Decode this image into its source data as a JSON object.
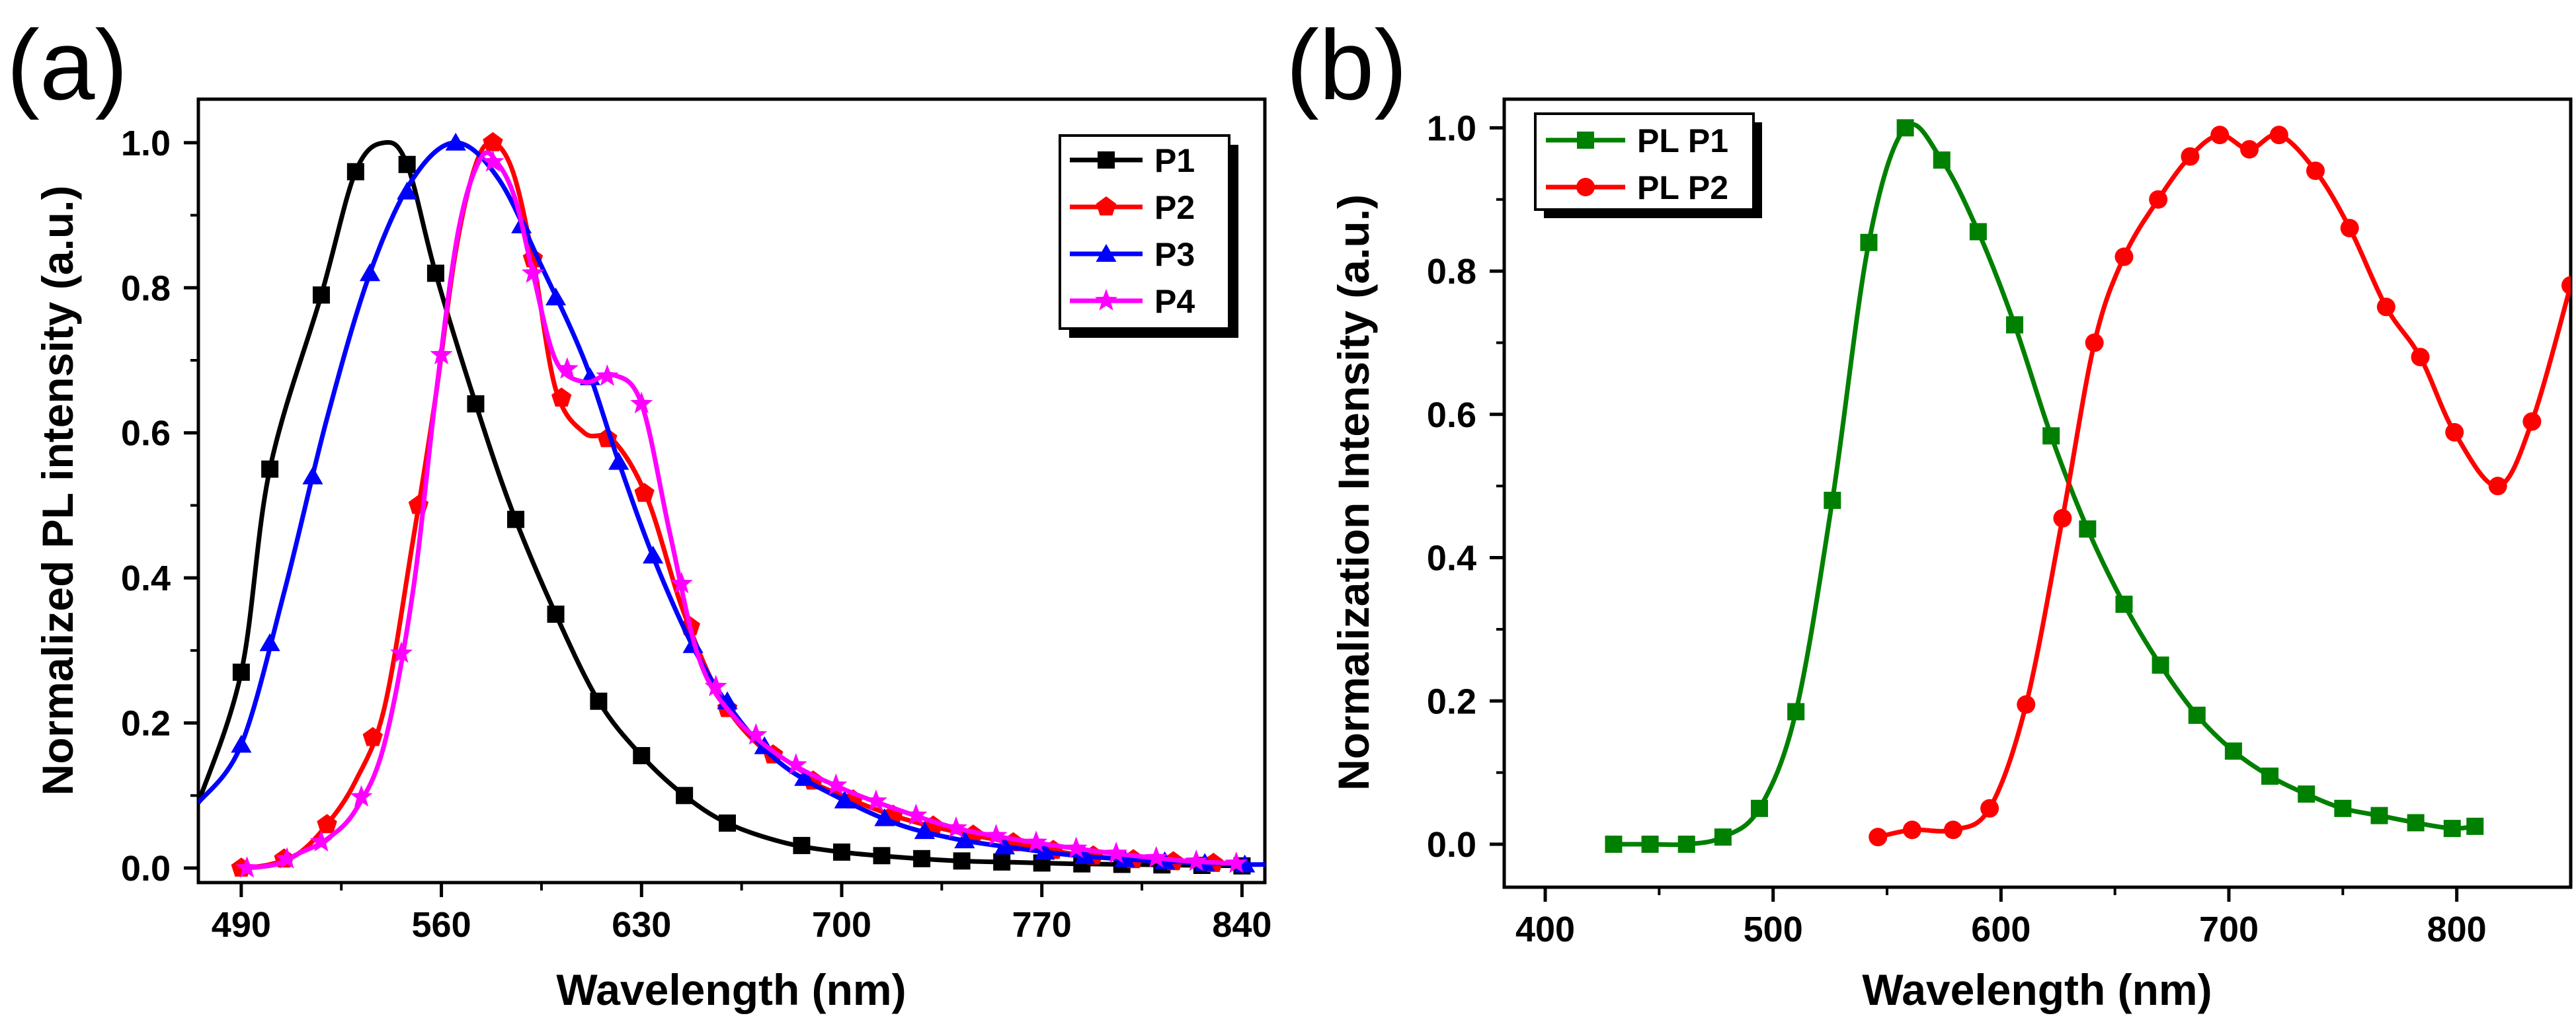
{
  "chart_data": [
    {
      "panel": "(a)",
      "type": "line",
      "xlabel": "Wavelength (nm)",
      "ylabel": "Normalized PL intensity (a.u.)",
      "xlim": [
        475,
        848
      ],
      "ylim": [
        -0.02,
        1.06
      ],
      "xticks": [
        490,
        560,
        630,
        700,
        770,
        840
      ],
      "yticks": [
        0.0,
        0.2,
        0.4,
        0.6,
        0.8,
        1.0
      ],
      "legend_position": "top-right",
      "series": [
        {
          "name": "P1",
          "color": "#000000",
          "marker": "square",
          "x": [
            475,
            490,
            500,
            518,
            530,
            540,
            548,
            558,
            572,
            585,
            600,
            615,
            630,
            645,
            660,
            680,
            700,
            720,
            740,
            760,
            780,
            800,
            820,
            840
          ],
          "y": [
            0.09,
            0.27,
            0.55,
            0.79,
            0.96,
            1.0,
            0.97,
            0.82,
            0.64,
            0.49,
            0.35,
            0.23,
            0.155,
            0.1,
            0.062,
            0.035,
            0.022,
            0.015,
            0.01,
            0.008,
            0.006,
            0.005,
            0.004,
            0.003
          ],
          "marker_x": [
            490,
            500,
            518,
            530,
            548,
            558,
            572,
            586,
            600,
            615,
            630,
            645,
            660,
            686,
            700,
            714,
            728,
            742,
            756,
            770,
            784,
            798,
            812,
            826,
            840
          ]
        },
        {
          "name": "P2",
          "color": "#ff0000",
          "marker": "pentagon",
          "x": [
            490,
            500,
            510,
            520,
            530,
            540,
            550,
            558,
            565,
            572,
            578,
            585,
            592,
            600,
            610,
            620,
            632,
            645,
            660,
            680,
            700,
            720,
            740,
            760,
            780,
            800,
            820,
            840
          ],
          "y": [
            0.0,
            0.005,
            0.02,
            0.06,
            0.12,
            0.22,
            0.45,
            0.65,
            0.85,
            0.97,
            1.0,
            0.96,
            0.84,
            0.66,
            0.6,
            0.59,
            0.51,
            0.35,
            0.22,
            0.14,
            0.1,
            0.07,
            0.05,
            0.035,
            0.02,
            0.012,
            0.008,
            0.005
          ],
          "marker_x": [
            490,
            505,
            520,
            536,
            552,
            578,
            592,
            602,
            618,
            631,
            647,
            660,
            676,
            690,
            704,
            718,
            732,
            746,
            760,
            774,
            788,
            802,
            816,
            830
          ]
        },
        {
          "name": "P3",
          "color": "#0000ff",
          "marker": "triangle",
          "x": [
            475,
            490,
            505,
            520,
            535,
            550,
            565,
            580,
            595,
            610,
            622,
            635,
            650,
            665,
            680,
            700,
            720,
            740,
            760,
            780,
            800,
            820,
            840,
            848
          ],
          "y": [
            0.09,
            0.17,
            0.38,
            0.62,
            0.82,
            0.95,
            1.0,
            0.95,
            0.83,
            0.7,
            0.56,
            0.42,
            0.29,
            0.2,
            0.14,
            0.095,
            0.06,
            0.04,
            0.028,
            0.018,
            0.012,
            0.008,
            0.005,
            0.005
          ],
          "marker_x": [
            490,
            500,
            515,
            535,
            548,
            565,
            588,
            600,
            612,
            622,
            634,
            648,
            660,
            673,
            687,
            701,
            715,
            729,
            743,
            757,
            771,
            785,
            799,
            813,
            827,
            841
          ]
        },
        {
          "name": "P4",
          "color": "#ff00ff",
          "marker": "star",
          "x": [
            492,
            502,
            510,
            520,
            530,
            540,
            550,
            558,
            566,
            574,
            580,
            586,
            592,
            600,
            610,
            620,
            630,
            640,
            650,
            662,
            680,
            700,
            720,
            740,
            760,
            780,
            800,
            820,
            840
          ],
          "y": [
            0.0,
            0.005,
            0.02,
            0.04,
            0.08,
            0.17,
            0.38,
            0.65,
            0.88,
            0.98,
            0.97,
            0.92,
            0.82,
            0.7,
            0.67,
            0.68,
            0.64,
            0.46,
            0.29,
            0.21,
            0.15,
            0.11,
            0.08,
            0.055,
            0.04,
            0.028,
            0.018,
            0.01,
            0.006
          ],
          "marker_x": [
            492,
            506,
            518,
            532,
            546,
            560,
            578,
            592,
            604,
            618,
            630,
            644,
            656,
            670,
            684,
            698,
            712,
            726,
            740,
            754,
            768,
            782,
            796,
            810,
            824,
            838
          ]
        }
      ]
    },
    {
      "panel": "(b)",
      "type": "line",
      "xlabel": "Wavelength (nm)",
      "ylabel": "Normalization Intensity (a.u.)",
      "xlim": [
        382,
        850
      ],
      "ylim": [
        -0.06,
        1.04
      ],
      "xticks": [
        400,
        500,
        600,
        700,
        800
      ],
      "yticks": [
        0.0,
        0.2,
        0.4,
        0.6,
        0.8,
        1.0
      ],
      "legend_position": "top-left",
      "series": [
        {
          "name": "PL P1",
          "color": "#008000",
          "marker": "square",
          "x": [
            430,
            446,
            462,
            478,
            494,
            510,
            526,
            542,
            558,
            574,
            590,
            606,
            622,
            638,
            654,
            670,
            686,
            702,
            718,
            734,
            750,
            766,
            782,
            798,
            808
          ],
          "y": [
            0.0,
            0.0,
            0.0,
            0.01,
            0.05,
            0.185,
            0.48,
            0.84,
            1.0,
            0.955,
            0.855,
            0.725,
            0.57,
            0.44,
            0.335,
            0.25,
            0.18,
            0.13,
            0.095,
            0.07,
            0.05,
            0.04,
            0.03,
            0.022,
            0.025
          ]
        },
        {
          "name": "PL P2",
          "color": "#ff0000",
          "marker": "circle",
          "x": [
            546,
            561,
            579,
            595,
            611,
            627,
            641,
            654,
            669,
            683,
            696,
            709,
            722,
            738,
            753,
            769,
            784,
            799,
            818,
            833,
            850
          ],
          "y": [
            0.01,
            0.02,
            0.02,
            0.05,
            0.195,
            0.455,
            0.7,
            0.82,
            0.9,
            0.96,
            0.99,
            0.97,
            0.99,
            0.94,
            0.86,
            0.75,
            0.68,
            0.575,
            0.5,
            0.59,
            0.78
          ]
        }
      ]
    }
  ]
}
